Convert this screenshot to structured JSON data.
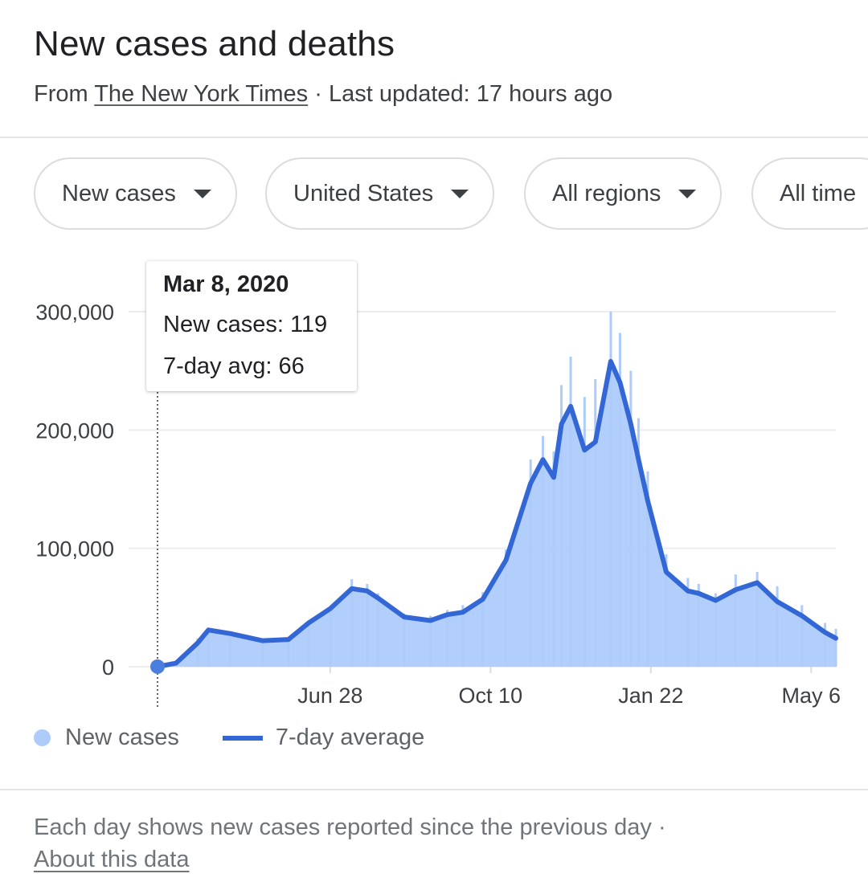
{
  "header": {
    "title": "New cases and deaths",
    "source_prefix": "From",
    "source_name": "The New York Times",
    "separator": "·",
    "updated": "Last updated: 17 hours ago"
  },
  "filters": [
    {
      "label": "New cases"
    },
    {
      "label": "United States"
    },
    {
      "label": "All regions"
    },
    {
      "label": "All time"
    }
  ],
  "tooltip": {
    "date": "Mar 8, 2020",
    "new_cases": "New cases: 119",
    "avg": "7-day avg: 66"
  },
  "legend": {
    "bars": "New cases",
    "line": "7-day average"
  },
  "footer": {
    "note": "Each day shows new cases reported since the previous day",
    "separator": "·",
    "about": "About this data"
  },
  "colors": {
    "bars": "#aecbfa",
    "line": "#3367d6",
    "grid": "#ebedf0",
    "text": "#202124",
    "muted": "#5f6368"
  },
  "chart_data": {
    "type": "area",
    "ylim": [
      0,
      300000
    ],
    "y_ticks": [
      0,
      100000,
      200000,
      300000
    ],
    "y_tick_labels": [
      "0",
      "100,000",
      "200,000",
      "300,000"
    ],
    "x_tick_labels": [
      "Jun 28",
      "Oct 10",
      "Jan 22",
      "May 6"
    ],
    "x_tick_dates": [
      "2020-06-28",
      "2020-10-10",
      "2021-01-22",
      "2021-05-06"
    ],
    "x_range": [
      "2020-03-08",
      "2021-05-22"
    ],
    "grid": true,
    "legend_position": "bottom-left",
    "highlight": {
      "date": "2020-03-08",
      "new_cases": 119,
      "avg": 66
    },
    "series": [
      {
        "name": "7-day average",
        "x": [
          "2020-03-08",
          "2020-03-20",
          "2020-04-03",
          "2020-04-10",
          "2020-04-24",
          "2020-05-15",
          "2020-06-01",
          "2020-06-14",
          "2020-06-28",
          "2020-07-12",
          "2020-07-22",
          "2020-07-29",
          "2020-08-15",
          "2020-09-01",
          "2020-09-12",
          "2020-09-22",
          "2020-10-05",
          "2020-10-20",
          "2020-11-05",
          "2020-11-13",
          "2020-11-20",
          "2020-11-25",
          "2020-12-01",
          "2020-12-10",
          "2020-12-17",
          "2020-12-27",
          "2021-01-02",
          "2021-01-09",
          "2021-01-14",
          "2021-01-20",
          "2021-02-01",
          "2021-02-15",
          "2021-02-22",
          "2021-03-05",
          "2021-03-18",
          "2021-04-01",
          "2021-04-14",
          "2021-04-30",
          "2021-05-15",
          "2021-05-22"
        ],
        "values": [
          66,
          3000,
          20000,
          31000,
          28000,
          22000,
          23000,
          37000,
          49000,
          66000,
          64000,
          58000,
          42000,
          39000,
          44000,
          46000,
          57000,
          90000,
          155000,
          175000,
          160000,
          205000,
          220000,
          183000,
          190000,
          258000,
          240000,
          205000,
          175000,
          140000,
          80000,
          64000,
          62000,
          56000,
          65000,
          71000,
          55000,
          43000,
          29000,
          24000
        ]
      },
      {
        "name": "New cases",
        "x": [
          "2020-03-08",
          "2020-03-20",
          "2020-04-03",
          "2020-04-10",
          "2020-04-24",
          "2020-05-15",
          "2020-06-01",
          "2020-06-14",
          "2020-06-28",
          "2020-07-12",
          "2020-07-22",
          "2020-07-29",
          "2020-08-15",
          "2020-09-01",
          "2020-09-12",
          "2020-09-22",
          "2020-10-05",
          "2020-10-20",
          "2020-11-05",
          "2020-11-13",
          "2020-11-20",
          "2020-11-25",
          "2020-12-01",
          "2020-12-10",
          "2020-12-17",
          "2020-12-27",
          "2021-01-02",
          "2021-01-09",
          "2021-01-14",
          "2021-01-20",
          "2021-02-01",
          "2021-02-15",
          "2021-02-22",
          "2021-03-05",
          "2021-03-18",
          "2021-04-01",
          "2021-04-14",
          "2021-04-30",
          "2021-05-15",
          "2021-05-22"
        ],
        "values": [
          119,
          4000,
          24000,
          33000,
          30000,
          24000,
          25000,
          39000,
          51000,
          74000,
          70000,
          62000,
          45000,
          43000,
          48000,
          52000,
          63000,
          99000,
          175000,
          195000,
          182000,
          238000,
          262000,
          228000,
          243000,
          300000,
          282000,
          250000,
          210000,
          165000,
          95000,
          75000,
          70000,
          62000,
          78000,
          80000,
          68000,
          52000,
          37000,
          32000
        ]
      }
    ]
  }
}
